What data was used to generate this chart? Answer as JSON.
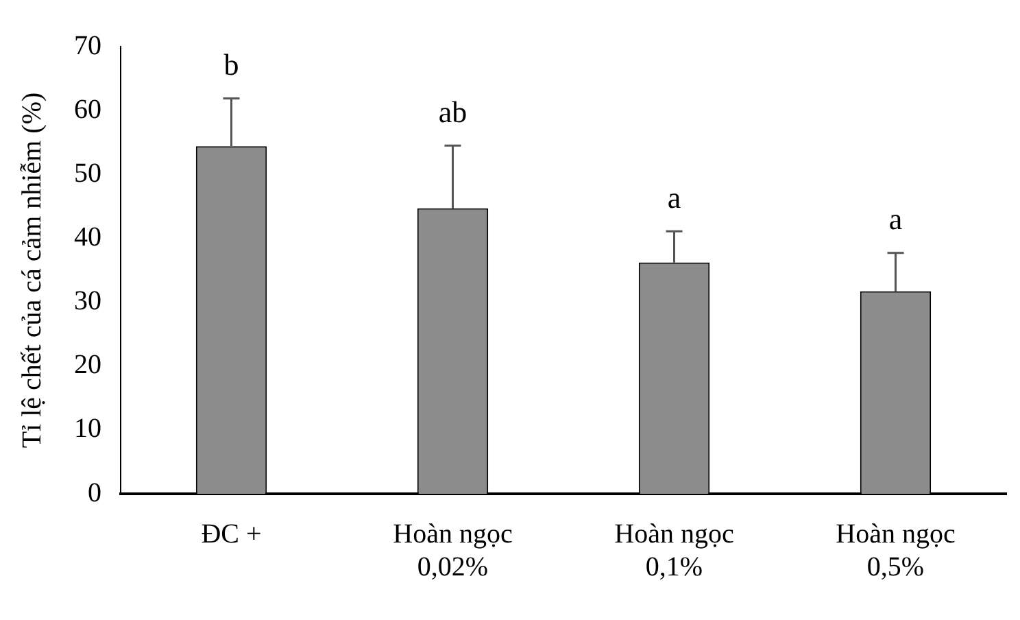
{
  "chart_data": {
    "type": "bar",
    "ylabel": "Tỉ lệ chết của cá cảm nhiễm (%)",
    "categories": [
      "ĐC +",
      "Hoàn ngọc\n0,02%",
      "Hoàn ngọc\n0,1%",
      "Hoàn ngọc\n0,5%"
    ],
    "values": [
      54.4,
      44.7,
      36.2,
      31.7
    ],
    "errors": [
      [
        54.4,
        61.9
      ],
      [
        44.7,
        54.5
      ],
      [
        36.2,
        41.1
      ],
      [
        31.7,
        37.7
      ]
    ],
    "color": "#8c8c8c",
    "ylim": [
      0,
      70
    ],
    "yticks": [
      0,
      10,
      20,
      30,
      40,
      50,
      60,
      70
    ],
    "grid": false,
    "legend": false,
    "annotations": [
      {
        "text": "b",
        "x": "ĐC +",
        "y": 61.9
      },
      {
        "text": "ab",
        "x": "Hoàn ngọc\n0,02%",
        "y": 54.5
      },
      {
        "text": "a",
        "x": "Hoàn ngọc\n0,1%",
        "y": 41.1
      },
      {
        "text": "a",
        "x": "Hoàn ngọc\n0,5%",
        "y": 37.7
      }
    ]
  }
}
